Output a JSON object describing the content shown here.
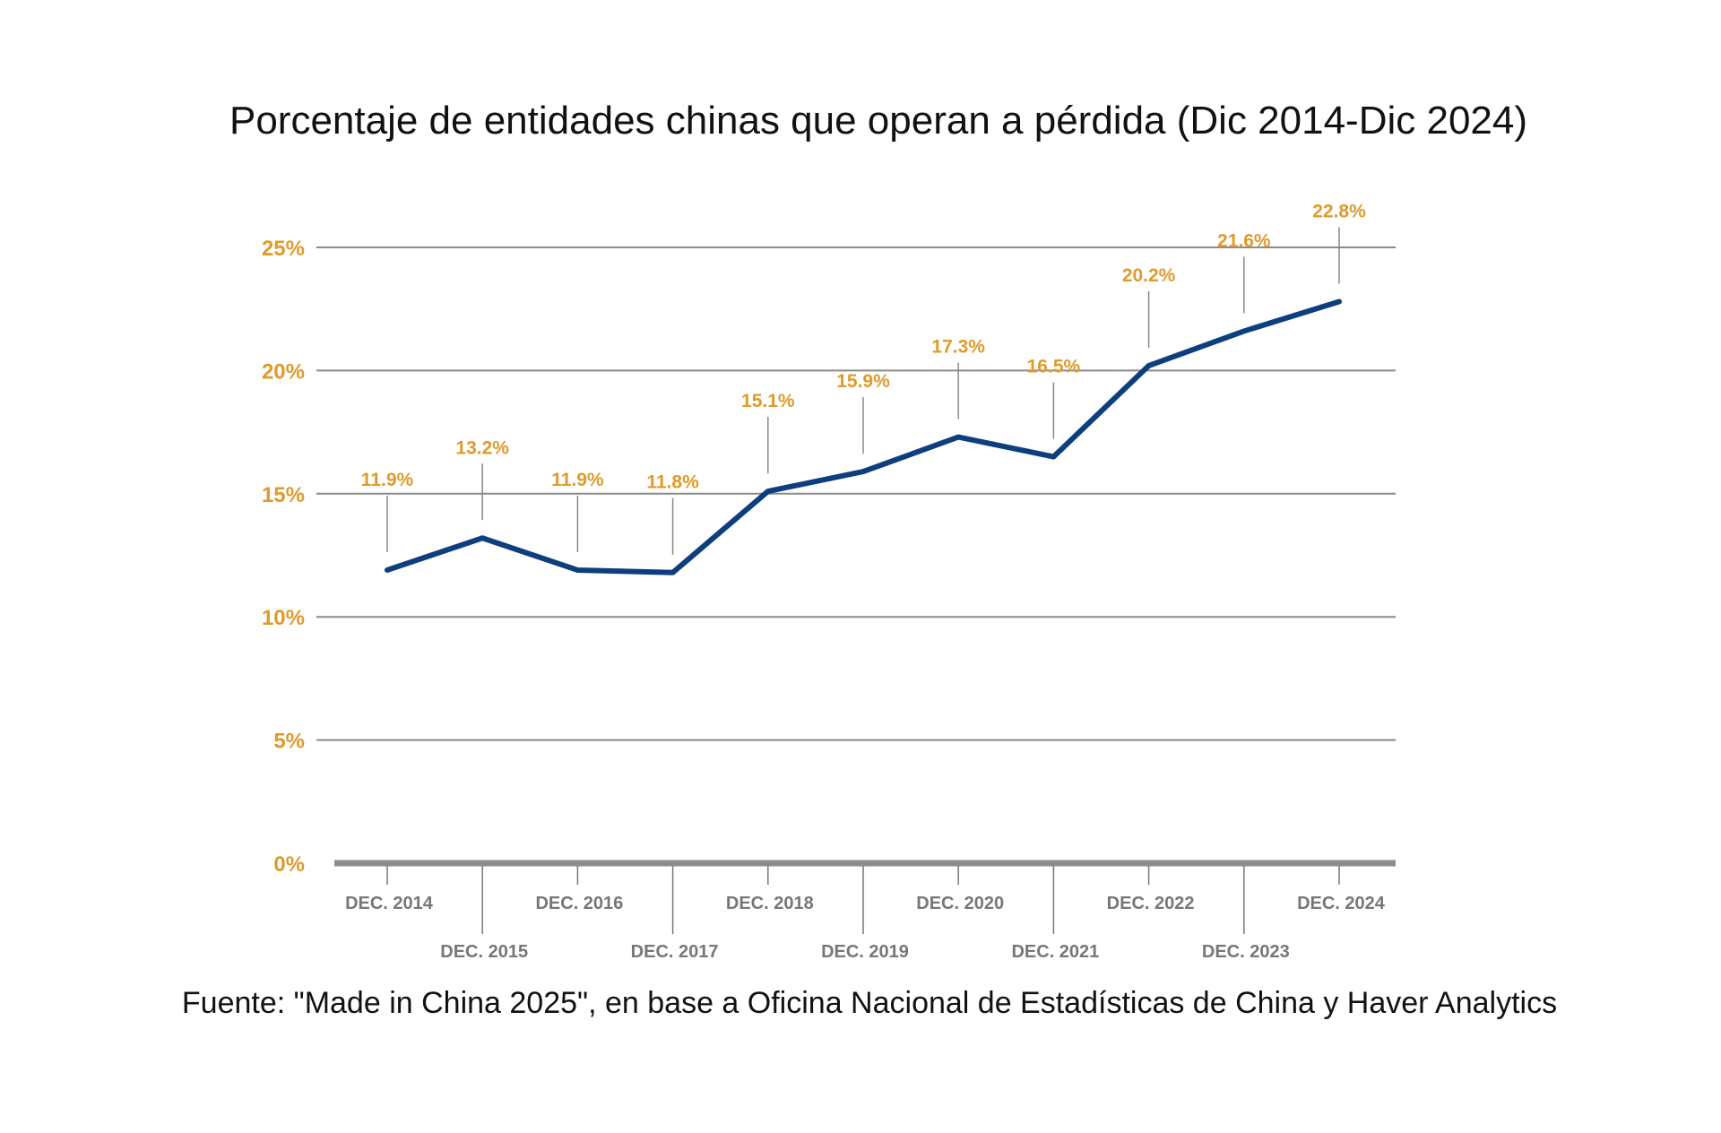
{
  "chart_data": {
    "type": "line",
    "title": "Porcentaje de entidades chinas que operan a pérdida (Dic 2014-Dic 2024)",
    "source": "Fuente: \"Made in China 2025\", en base a Oficina Nacional de Estadísticas  de China y Haver Analytics",
    "categories": [
      "DEC. 2014",
      "DEC. 2015",
      "DEC. 2016",
      "DEC. 2017",
      "DEC. 2018",
      "DEC. 2019",
      "DEC. 2020",
      "DEC. 2021",
      "DEC. 2022",
      "DEC. 2023",
      "DEC. 2024"
    ],
    "values": [
      11.9,
      13.2,
      11.9,
      11.8,
      15.1,
      15.9,
      17.3,
      16.5,
      20.2,
      21.6,
      22.8
    ],
    "data_labels": [
      "11.9%",
      "13.2%",
      "11.9%",
      "11.8%",
      "15.1%",
      "15.9%",
      "17.3%",
      "16.5%",
      "20.2%",
      "21.6%",
      "22.8%"
    ],
    "ylim": [
      0,
      25
    ],
    "yticks": [
      0,
      5,
      10,
      15,
      20,
      25
    ],
    "ytick_labels": [
      "0%",
      "5%",
      "10%",
      "15%",
      "20%",
      "25%"
    ],
    "grid": true,
    "colors": {
      "line": "#0d3f7e",
      "labels": "#e09a2c",
      "grid": "#8a8a8a",
      "xticks": "#777777"
    }
  }
}
